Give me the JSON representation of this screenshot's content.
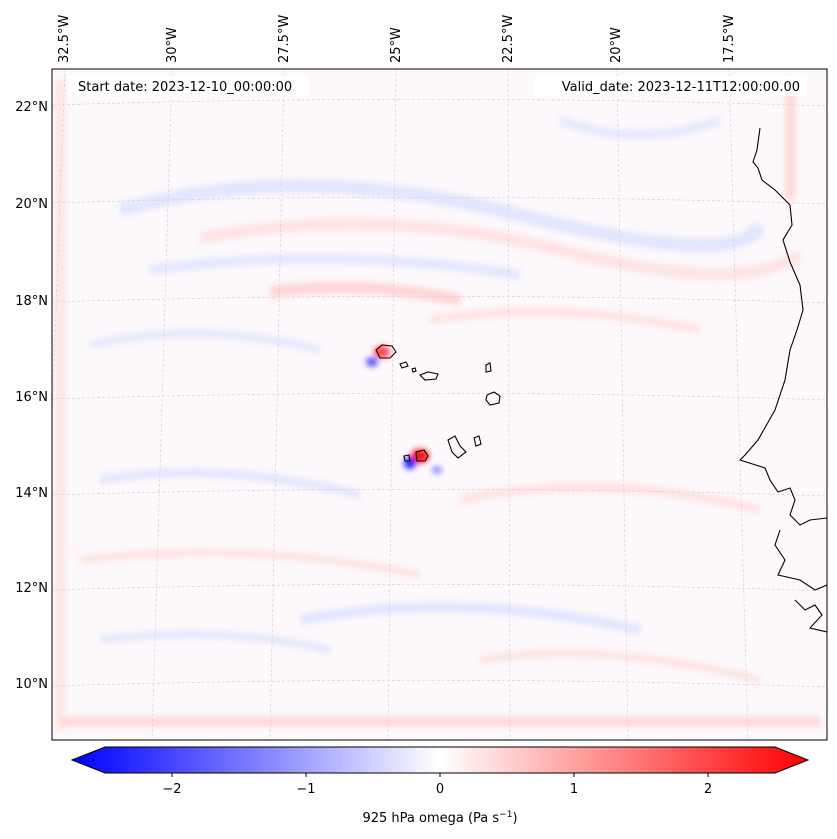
{
  "map": {
    "start_label": "Start date: 2023-12-10_00:00:00",
    "valid_label": "Valid_date: 2023-12-11T12:00:00.00",
    "longitude_labels": [
      "32.5°W",
      "30°W",
      "27.5°W",
      "25°W",
      "22.5°W",
      "20°W",
      "17.5°W"
    ],
    "latitude_labels": [
      "22°N",
      "20°N",
      "18°N",
      "16°N",
      "14°N",
      "12°N",
      "10°N"
    ],
    "field": "omega",
    "colormap": [
      "#0000ff",
      "#ffffff",
      "#ff0000"
    ]
  },
  "colorbar": {
    "ticks": [
      "−2",
      "−1",
      "0",
      "1",
      "2"
    ],
    "tick_values": [
      -2,
      -1,
      0,
      1,
      2
    ],
    "range": [
      -2.5,
      2.5
    ],
    "label_main": "925 hPa omega (Pa s",
    "label_sup": "−1",
    "label_end": ")"
  }
}
